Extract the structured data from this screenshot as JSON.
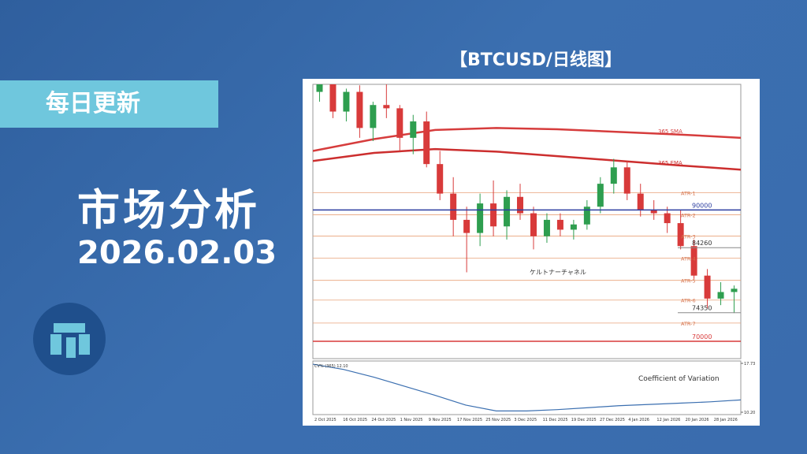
{
  "header": {
    "tag": "每日更新",
    "title": "市场分析",
    "date": "2026.02.03",
    "chart_caption": "【BTCUSD/日线图】"
  },
  "chart_data": {
    "type": "candlestick",
    "ylim": [
      67350,
      109150
    ],
    "candles": [
      [
        108000,
        110500,
        106500,
        109500
      ],
      [
        109500,
        111000,
        104000,
        105000
      ],
      [
        105000,
        108500,
        103500,
        108000
      ],
      [
        108000,
        109000,
        101000,
        102500
      ],
      [
        102500,
        106500,
        100500,
        106000
      ],
      [
        106000,
        109500,
        104000,
        105500
      ],
      [
        105500,
        106000,
        99000,
        101000
      ],
      [
        101000,
        104500,
        98500,
        103500
      ],
      [
        103500,
        105000,
        96500,
        97000
      ],
      [
        97000,
        99000,
        91500,
        92500
      ],
      [
        92500,
        95000,
        86000,
        88500
      ],
      [
        88500,
        90500,
        80500,
        86500
      ],
      [
        86500,
        92500,
        84500,
        91000
      ],
      [
        91000,
        94500,
        86000,
        87500
      ],
      [
        87500,
        93000,
        85500,
        92000
      ],
      [
        92000,
        94000,
        88500,
        89500
      ],
      [
        89500,
        90500,
        84000,
        86000
      ],
      [
        86000,
        89500,
        85000,
        88500
      ],
      [
        88500,
        89500,
        86000,
        87000
      ],
      [
        87000,
        88500,
        85500,
        87800
      ],
      [
        87800,
        91500,
        87000,
        90500
      ],
      [
        90500,
        95000,
        89500,
        94000
      ],
      [
        94000,
        97800,
        92500,
        96500
      ],
      [
        96500,
        97500,
        91500,
        92500
      ],
      [
        92500,
        94000,
        89000,
        90000
      ],
      [
        90000,
        91500,
        88500,
        89500
      ],
      [
        89500,
        90500,
        86500,
        88000
      ],
      [
        88000,
        90000,
        84000,
        84500
      ],
      [
        84500,
        85500,
        79500,
        80000
      ],
      [
        80000,
        81000,
        75000,
        76500
      ],
      [
        76500,
        79000,
        75500,
        77500
      ],
      [
        77500,
        78500,
        74300,
        78000
      ]
    ],
    "up_color": "#2e9e4f",
    "down_color": "#d83a3a",
    "sma": {
      "name": "365 SMA",
      "color": "#d63c3c",
      "values": [
        99000,
        100800,
        102200,
        102500,
        102300,
        101900,
        101500,
        101000
      ]
    },
    "ema": {
      "name": "365 EMA",
      "color": "#cc2e2e",
      "values": [
        97470,
        98700,
        99280,
        98900,
        98200,
        97500,
        96800,
        96150
      ]
    },
    "bands": [
      {
        "name": "ATR-1",
        "value": 92650
      },
      {
        "name": "ATR-2",
        "value": 89280
      },
      {
        "name": "ATR-3",
        "value": 86020
      },
      {
        "name": "ATR-4",
        "value": 82650
      },
      {
        "name": "ATR-5",
        "value": 79280
      },
      {
        "name": "ATR-6",
        "value": 76270
      },
      {
        "name": "ATR-7",
        "value": 72770
      }
    ],
    "band_color": "#e8a27a",
    "levels": [
      {
        "value": 90000,
        "color": "#2c3ea0"
      },
      {
        "value": 84260,
        "color": "#888888"
      },
      {
        "value": 74350,
        "color": "#888888"
      },
      {
        "value": 70000,
        "color": "#d83a3a"
      }
    ],
    "channel_label": "ケルトナーチャネル",
    "x_labels": [
      "2 Oct 2025",
      "16 Oct 2025",
      "24 Oct 2025",
      "1 Nov 2025",
      "9 Nov 2025",
      "17 Nov 2025",
      "25 Nov 2025",
      "3 Dec 2025",
      "11 Dec 2025",
      "19 Dec 2025",
      "27 Dec 2025",
      "4 Jan 2026",
      "12 Jan 2026",
      "20 Jan 2026",
      "28 Jan 2026"
    ],
    "cv": {
      "label": "CV% (365) 12.10",
      "title": "Coefficient of Variation",
      "color": "#3b6fb0",
      "ylim": [
        10.2,
        17.73
      ],
      "yticks": [
        {
          "value": 17.73,
          "label": "17.73"
        },
        {
          "value": 10.2,
          "label": "10.20"
        }
      ],
      "values": [
        17.6,
        16.8,
        15.6,
        14.2,
        12.8,
        11.3,
        10.4,
        10.4,
        10.6,
        10.9,
        11.2,
        11.4,
        11.6,
        11.8,
        12.1
      ]
    }
  }
}
